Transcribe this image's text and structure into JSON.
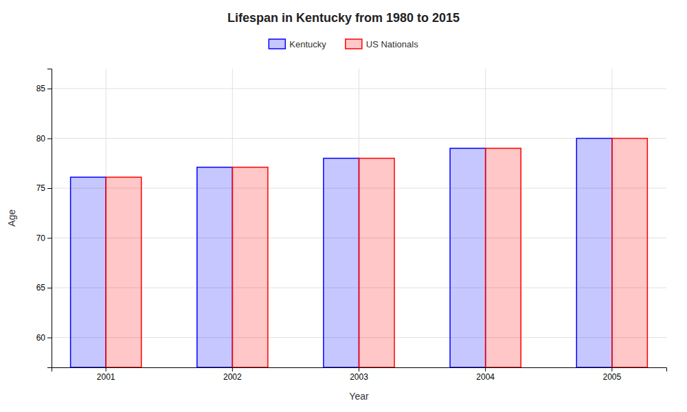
{
  "chart_data": {
    "type": "bar",
    "title": "Lifespan in Kentucky from 1980 to 2015",
    "xlabel": "Year",
    "ylabel": "Age",
    "categories": [
      "2001",
      "2002",
      "2003",
      "2004",
      "2005"
    ],
    "series": [
      {
        "name": "Kentucky",
        "color": "#0000ff",
        "values": [
          76.1,
          77.1,
          78.0,
          79.0,
          80.0
        ]
      },
      {
        "name": "US Nationals",
        "color": "#ff0000",
        "values": [
          76.1,
          77.1,
          78.0,
          79.0,
          80.0
        ]
      }
    ],
    "ylim": [
      57,
      87
    ],
    "yticks": [
      60,
      65,
      70,
      75,
      80,
      85
    ],
    "grid": true,
    "legend": "top"
  }
}
